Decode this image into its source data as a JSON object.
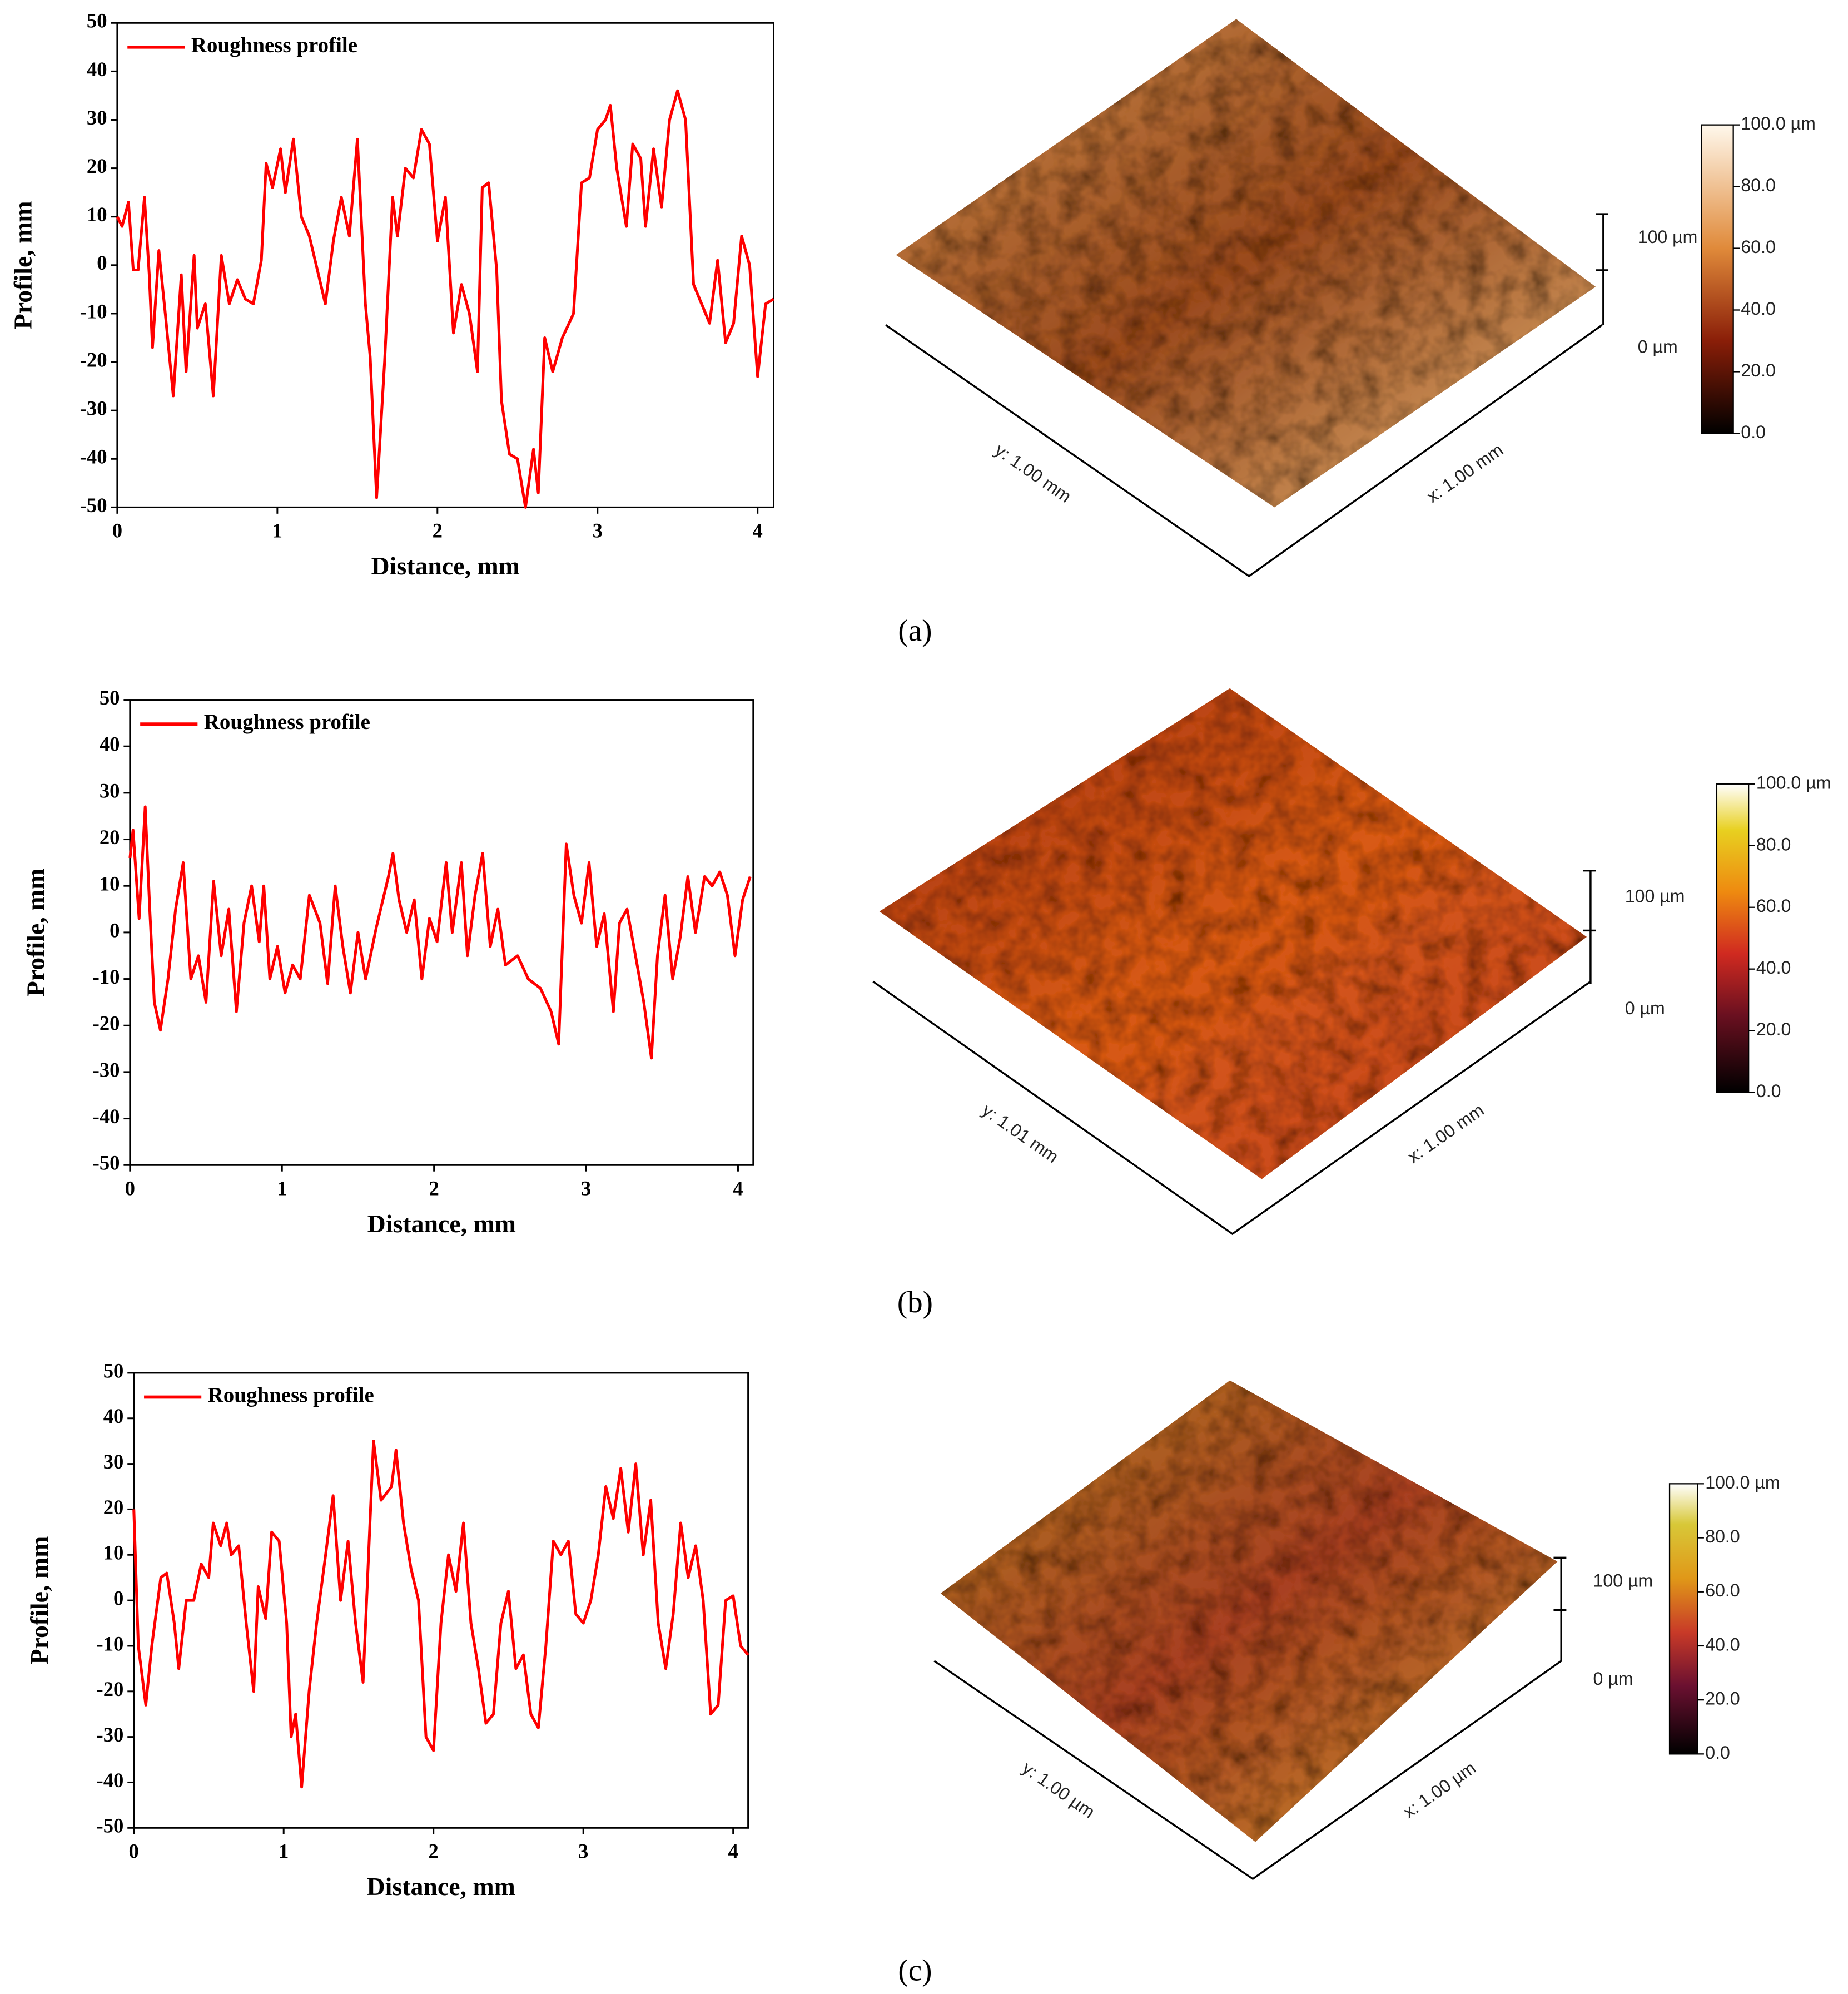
{
  "chart_data": [
    {
      "type": "line",
      "xlabel": "Distance, mm",
      "ylabel": "Profile, mm",
      "legend": "upper left",
      "x": [
        0,
        0.03,
        0.07,
        0.1,
        0.13,
        0.17,
        0.2,
        0.22,
        0.26,
        0.3,
        0.35,
        0.4,
        0.43,
        0.48,
        0.5,
        0.55,
        0.6,
        0.65,
        0.7,
        0.75,
        0.8,
        0.85,
        0.9,
        0.93,
        0.97,
        1.02,
        1.05,
        1.1,
        1.15,
        1.2,
        1.25,
        1.3,
        1.35,
        1.4,
        1.45,
        1.5,
        1.55,
        1.58,
        1.62,
        1.67,
        1.72,
        1.75,
        1.8,
        1.85,
        1.9,
        1.95,
        2.0,
        2.05,
        2.1,
        2.15,
        2.2,
        2.25,
        2.28,
        2.32,
        2.37,
        2.4,
        2.45,
        2.5,
        2.55,
        2.6,
        2.63,
        2.67,
        2.72,
        2.78,
        2.85,
        2.9,
        2.95,
        3.0,
        3.05,
        3.08,
        3.12,
        3.18,
        3.22,
        3.27,
        3.3,
        3.35,
        3.4,
        3.45,
        3.5,
        3.55,
        3.6,
        3.65,
        3.7,
        3.75,
        3.8,
        3.85,
        3.9,
        3.95,
        4.0,
        4.05,
        4.1
      ],
      "series": [
        {
          "name": "Roughness profile",
          "color": "#ff0000",
          "values": [
            10,
            8,
            13,
            -1,
            -1,
            14,
            -2,
            -17,
            3,
            -10,
            -27,
            -2,
            -22,
            2,
            -13,
            -8,
            -27,
            2,
            -8,
            -3,
            -7,
            -8,
            1,
            21,
            16,
            24,
            15,
            26,
            10,
            6,
            -1,
            -8,
            5,
            14,
            6,
            26,
            -8,
            -19,
            -48,
            -20,
            14,
            6,
            20,
            18,
            28,
            25,
            5,
            14,
            -14,
            -4,
            -10,
            -22,
            16,
            17,
            -1,
            -28,
            -39,
            -40,
            -50,
            -38,
            -47,
            -15,
            -22,
            -15,
            -10,
            17,
            18,
            28,
            30,
            33,
            20,
            8,
            25,
            22,
            8,
            24,
            12,
            30,
            36,
            30,
            -4,
            -8,
            -12,
            1,
            -16,
            -12,
            6,
            0,
            -23,
            -8,
            -7
          ]
        }
      ],
      "xlim": [
        0,
        4.1
      ],
      "ylim": [
        -50,
        50
      ],
      "xticks": [
        0,
        1,
        2,
        3,
        4
      ],
      "yticks": [
        -50,
        -40,
        -30,
        -20,
        -10,
        0,
        10,
        20,
        30,
        40,
        50
      ]
    },
    {
      "type": "line",
      "xlabel": "Distance, mm",
      "ylabel": "Profile, mm",
      "legend": "upper left",
      "x": [
        0,
        0.02,
        0.06,
        0.1,
        0.13,
        0.16,
        0.2,
        0.25,
        0.3,
        0.35,
        0.4,
        0.45,
        0.5,
        0.55,
        0.6,
        0.65,
        0.7,
        0.75,
        0.8,
        0.85,
        0.88,
        0.92,
        0.97,
        1.02,
        1.07,
        1.12,
        1.18,
        1.25,
        1.3,
        1.35,
        1.4,
        1.45,
        1.5,
        1.55,
        1.62,
        1.7,
        1.73,
        1.77,
        1.82,
        1.87,
        1.92,
        1.97,
        2.02,
        2.08,
        2.12,
        2.18,
        2.22,
        2.27,
        2.32,
        2.37,
        2.42,
        2.47,
        2.55,
        2.62,
        2.7,
        2.77,
        2.82,
        2.87,
        2.92,
        2.97,
        3.02,
        3.07,
        3.12,
        3.18,
        3.22,
        3.27,
        3.32,
        3.38,
        3.43,
        3.47,
        3.52,
        3.57,
        3.62,
        3.67,
        3.72,
        3.78,
        3.83,
        3.88,
        3.93,
        3.98,
        4.03,
        4.08
      ],
      "series": [
        {
          "name": "Roughness profile",
          "color": "#ff0000",
          "values": [
            16,
            22,
            3,
            27,
            5,
            -15,
            -21,
            -10,
            5,
            15,
            -10,
            -5,
            -15,
            11,
            -5,
            5,
            -17,
            2,
            10,
            -2,
            10,
            -10,
            -3,
            -13,
            -7,
            -10,
            8,
            2,
            -11,
            10,
            -3,
            -13,
            0,
            -10,
            1,
            12,
            17,
            7,
            0,
            7,
            -10,
            3,
            -2,
            15,
            0,
            15,
            -5,
            8,
            17,
            -3,
            5,
            -7,
            -5,
            -10,
            -12,
            -17,
            -24,
            19,
            8,
            2,
            15,
            -3,
            4,
            -17,
            2,
            5,
            -4,
            -15,
            -27,
            -5,
            8,
            -10,
            -1,
            12,
            0,
            12,
            10,
            13,
            8,
            -5,
            7,
            12
          ]
        }
      ],
      "xlim": [
        0,
        4.1
      ],
      "ylim": [
        -50,
        50
      ],
      "xticks": [
        0,
        1,
        2,
        3,
        4
      ],
      "yticks": [
        -50,
        -40,
        -30,
        -20,
        -10,
        0,
        10,
        20,
        30,
        40,
        50
      ]
    },
    {
      "type": "line",
      "xlabel": "Distance, mm",
      "ylabel": "Profile, mm",
      "legend": "upper left",
      "x": [
        0,
        0.03,
        0.08,
        0.12,
        0.18,
        0.22,
        0.27,
        0.3,
        0.35,
        0.4,
        0.45,
        0.5,
        0.53,
        0.58,
        0.62,
        0.65,
        0.7,
        0.75,
        0.8,
        0.83,
        0.88,
        0.92,
        0.97,
        1.02,
        1.05,
        1.08,
        1.12,
        1.17,
        1.22,
        1.28,
        1.33,
        1.38,
        1.43,
        1.48,
        1.53,
        1.58,
        1.6,
        1.65,
        1.72,
        1.75,
        1.8,
        1.85,
        1.9,
        1.95,
        2.0,
        2.05,
        2.1,
        2.15,
        2.2,
        2.25,
        2.3,
        2.35,
        2.4,
        2.45,
        2.5,
        2.55,
        2.6,
        2.65,
        2.7,
        2.75,
        2.8,
        2.85,
        2.9,
        2.95,
        3.0,
        3.05,
        3.1,
        3.15,
        3.2,
        3.25,
        3.3,
        3.35,
        3.4,
        3.45,
        3.5,
        3.55,
        3.6,
        3.65,
        3.7,
        3.75,
        3.8,
        3.85,
        3.9,
        3.95,
        4.0,
        4.05,
        4.1
      ],
      "series": [
        {
          "name": "Roughness profile",
          "color": "#ff0000",
          "values": [
            20,
            -10,
            -23,
            -10,
            5,
            6,
            -5,
            -15,
            0,
            0,
            8,
            5,
            17,
            12,
            17,
            10,
            12,
            -5,
            -20,
            3,
            -4,
            15,
            13,
            -5,
            -30,
            -25,
            -41,
            -20,
            -5,
            10,
            23,
            0,
            13,
            -5,
            -18,
            20,
            35,
            22,
            25,
            33,
            17,
            7,
            0,
            -30,
            -33,
            -5,
            10,
            2,
            17,
            -5,
            -15,
            -27,
            -25,
            -5,
            2,
            -15,
            -12,
            -25,
            -28,
            -10,
            13,
            10,
            13,
            -3,
            -5,
            0,
            10,
            25,
            18,
            29,
            15,
            30,
            10,
            22,
            -5,
            -15,
            -3,
            17,
            5,
            12,
            0,
            -25,
            -23,
            0,
            1,
            -10,
            -12
          ]
        }
      ],
      "xlim": [
        0,
        4.1
      ],
      "ylim": [
        -50,
        50
      ],
      "xticks": [
        0,
        1,
        2,
        3,
        4
      ],
      "yticks": [
        -50,
        -40,
        -30,
        -20,
        -10,
        0,
        10,
        20,
        30,
        40,
        50
      ]
    }
  ],
  "surfaces": [
    {
      "x_axis_label": "x: 1.00 mm",
      "y_axis_label": "y: 1.00 mm",
      "z_labels": [
        "100 µm",
        "0 µm"
      ],
      "colorbar_ticks": [
        {
          "value": 0,
          "label": "0.0"
        },
        {
          "value": 20,
          "label": "20.0"
        },
        {
          "value": 40,
          "label": "40.0"
        },
        {
          "value": 60,
          "label": "60.0"
        },
        {
          "value": 80,
          "label": "80.0"
        },
        {
          "value": 100,
          "label": "100.0 µm"
        }
      ]
    },
    {
      "x_axis_label": "x: 1.00 mm",
      "y_axis_label": "y: 1.01 mm",
      "z_labels": [
        "100 µm",
        "0 µm"
      ],
      "colorbar_ticks": [
        {
          "value": 0,
          "label": "0.0"
        },
        {
          "value": 20,
          "label": "20.0"
        },
        {
          "value": 40,
          "label": "40.0"
        },
        {
          "value": 60,
          "label": "60.0"
        },
        {
          "value": 80,
          "label": "80.0"
        },
        {
          "value": 100,
          "label": "100.0 µm"
        }
      ]
    },
    {
      "x_axis_label": "x: 1.00 µm",
      "y_axis_label": "y: 1.00 µm",
      "z_labels": [
        "100 µm",
        "0 µm"
      ],
      "colorbar_ticks": [
        {
          "value": 0,
          "label": "0.0"
        },
        {
          "value": 20,
          "label": "20.0"
        },
        {
          "value": 40,
          "label": "40.0"
        },
        {
          "value": 60,
          "label": "60.0"
        },
        {
          "value": 80,
          "label": "80.0"
        },
        {
          "value": 100,
          "label": "100.0 µm"
        }
      ]
    }
  ],
  "captions": [
    "(a)",
    "(b)",
    "(c)"
  ]
}
